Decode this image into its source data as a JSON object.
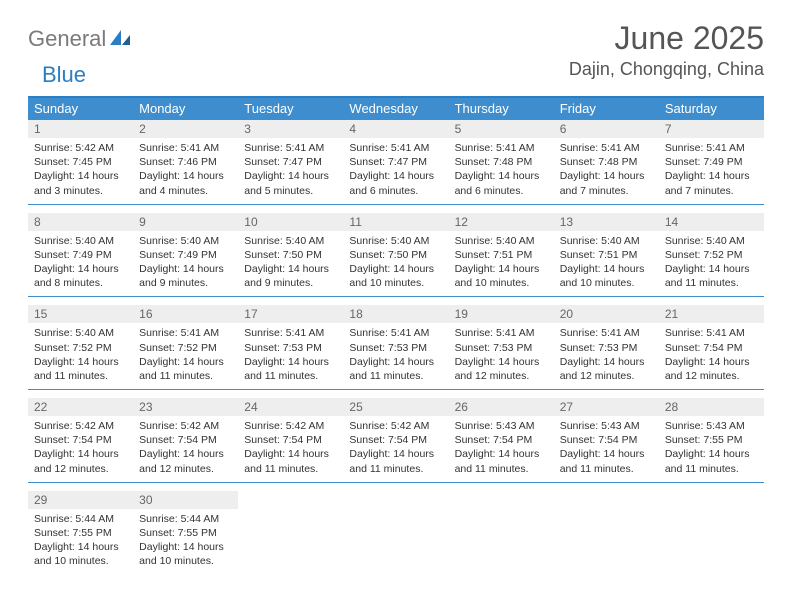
{
  "colors": {
    "accent": "#3e8ecf",
    "accent_border": "#2a7ec4",
    "header_gray": "#eeeeee",
    "text_gray": "#555555",
    "text_dark": "#333333",
    "day_num_text": "#666666",
    "logo_gray": "#7a7a7a",
    "logo_blue": "#2a7ec4",
    "background": "#ffffff"
  },
  "logo": {
    "part1": "General",
    "part2": "Blue"
  },
  "title": "June 2025",
  "location": "Dajin, Chongqing, China",
  "weekdays": [
    "Sunday",
    "Monday",
    "Tuesday",
    "Wednesday",
    "Thursday",
    "Friday",
    "Saturday"
  ],
  "weeks": [
    [
      {
        "n": "1",
        "sunrise": "Sunrise: 5:42 AM",
        "sunset": "Sunset: 7:45 PM",
        "daylight": "Daylight: 14 hours and 3 minutes."
      },
      {
        "n": "2",
        "sunrise": "Sunrise: 5:41 AM",
        "sunset": "Sunset: 7:46 PM",
        "daylight": "Daylight: 14 hours and 4 minutes."
      },
      {
        "n": "3",
        "sunrise": "Sunrise: 5:41 AM",
        "sunset": "Sunset: 7:47 PM",
        "daylight": "Daylight: 14 hours and 5 minutes."
      },
      {
        "n": "4",
        "sunrise": "Sunrise: 5:41 AM",
        "sunset": "Sunset: 7:47 PM",
        "daylight": "Daylight: 14 hours and 6 minutes."
      },
      {
        "n": "5",
        "sunrise": "Sunrise: 5:41 AM",
        "sunset": "Sunset: 7:48 PM",
        "daylight": "Daylight: 14 hours and 6 minutes."
      },
      {
        "n": "6",
        "sunrise": "Sunrise: 5:41 AM",
        "sunset": "Sunset: 7:48 PM",
        "daylight": "Daylight: 14 hours and 7 minutes."
      },
      {
        "n": "7",
        "sunrise": "Sunrise: 5:41 AM",
        "sunset": "Sunset: 7:49 PM",
        "daylight": "Daylight: 14 hours and 7 minutes."
      }
    ],
    [
      {
        "n": "8",
        "sunrise": "Sunrise: 5:40 AM",
        "sunset": "Sunset: 7:49 PM",
        "daylight": "Daylight: 14 hours and 8 minutes."
      },
      {
        "n": "9",
        "sunrise": "Sunrise: 5:40 AM",
        "sunset": "Sunset: 7:49 PM",
        "daylight": "Daylight: 14 hours and 9 minutes."
      },
      {
        "n": "10",
        "sunrise": "Sunrise: 5:40 AM",
        "sunset": "Sunset: 7:50 PM",
        "daylight": "Daylight: 14 hours and 9 minutes."
      },
      {
        "n": "11",
        "sunrise": "Sunrise: 5:40 AM",
        "sunset": "Sunset: 7:50 PM",
        "daylight": "Daylight: 14 hours and 10 minutes."
      },
      {
        "n": "12",
        "sunrise": "Sunrise: 5:40 AM",
        "sunset": "Sunset: 7:51 PM",
        "daylight": "Daylight: 14 hours and 10 minutes."
      },
      {
        "n": "13",
        "sunrise": "Sunrise: 5:40 AM",
        "sunset": "Sunset: 7:51 PM",
        "daylight": "Daylight: 14 hours and 10 minutes."
      },
      {
        "n": "14",
        "sunrise": "Sunrise: 5:40 AM",
        "sunset": "Sunset: 7:52 PM",
        "daylight": "Daylight: 14 hours and 11 minutes."
      }
    ],
    [
      {
        "n": "15",
        "sunrise": "Sunrise: 5:40 AM",
        "sunset": "Sunset: 7:52 PM",
        "daylight": "Daylight: 14 hours and 11 minutes."
      },
      {
        "n": "16",
        "sunrise": "Sunrise: 5:41 AM",
        "sunset": "Sunset: 7:52 PM",
        "daylight": "Daylight: 14 hours and 11 minutes."
      },
      {
        "n": "17",
        "sunrise": "Sunrise: 5:41 AM",
        "sunset": "Sunset: 7:53 PM",
        "daylight": "Daylight: 14 hours and 11 minutes."
      },
      {
        "n": "18",
        "sunrise": "Sunrise: 5:41 AM",
        "sunset": "Sunset: 7:53 PM",
        "daylight": "Daylight: 14 hours and 11 minutes."
      },
      {
        "n": "19",
        "sunrise": "Sunrise: 5:41 AM",
        "sunset": "Sunset: 7:53 PM",
        "daylight": "Daylight: 14 hours and 12 minutes."
      },
      {
        "n": "20",
        "sunrise": "Sunrise: 5:41 AM",
        "sunset": "Sunset: 7:53 PM",
        "daylight": "Daylight: 14 hours and 12 minutes."
      },
      {
        "n": "21",
        "sunrise": "Sunrise: 5:41 AM",
        "sunset": "Sunset: 7:54 PM",
        "daylight": "Daylight: 14 hours and 12 minutes."
      }
    ],
    [
      {
        "n": "22",
        "sunrise": "Sunrise: 5:42 AM",
        "sunset": "Sunset: 7:54 PM",
        "daylight": "Daylight: 14 hours and 12 minutes."
      },
      {
        "n": "23",
        "sunrise": "Sunrise: 5:42 AM",
        "sunset": "Sunset: 7:54 PM",
        "daylight": "Daylight: 14 hours and 12 minutes."
      },
      {
        "n": "24",
        "sunrise": "Sunrise: 5:42 AM",
        "sunset": "Sunset: 7:54 PM",
        "daylight": "Daylight: 14 hours and 11 minutes."
      },
      {
        "n": "25",
        "sunrise": "Sunrise: 5:42 AM",
        "sunset": "Sunset: 7:54 PM",
        "daylight": "Daylight: 14 hours and 11 minutes."
      },
      {
        "n": "26",
        "sunrise": "Sunrise: 5:43 AM",
        "sunset": "Sunset: 7:54 PM",
        "daylight": "Daylight: 14 hours and 11 minutes."
      },
      {
        "n": "27",
        "sunrise": "Sunrise: 5:43 AM",
        "sunset": "Sunset: 7:54 PM",
        "daylight": "Daylight: 14 hours and 11 minutes."
      },
      {
        "n": "28",
        "sunrise": "Sunrise: 5:43 AM",
        "sunset": "Sunset: 7:55 PM",
        "daylight": "Daylight: 14 hours and 11 minutes."
      }
    ],
    [
      {
        "n": "29",
        "sunrise": "Sunrise: 5:44 AM",
        "sunset": "Sunset: 7:55 PM",
        "daylight": "Daylight: 14 hours and 10 minutes."
      },
      {
        "n": "30",
        "sunrise": "Sunrise: 5:44 AM",
        "sunset": "Sunset: 7:55 PM",
        "daylight": "Daylight: 14 hours and 10 minutes."
      },
      null,
      null,
      null,
      null,
      null
    ]
  ]
}
